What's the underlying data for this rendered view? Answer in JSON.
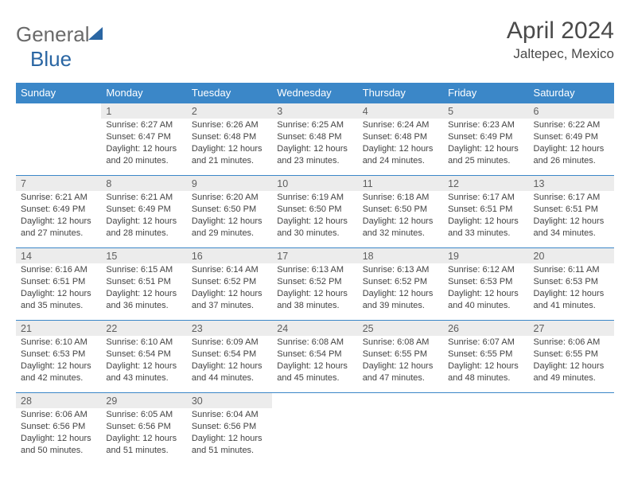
{
  "colors": {
    "header_bg": "#3b87c8",
    "header_text": "#ffffff",
    "daynum_bg": "#ececec",
    "daynum_text": "#5e5e5e",
    "cell_text": "#434343",
    "border": "#3b87c8",
    "logo_general": "#6a6a6a",
    "logo_blue": "#2a66a3",
    "title_text": "#4a4a4a",
    "location_text": "#4a4a4a",
    "sail_color": "#2a66a3"
  },
  "typography": {
    "month_title_fontsize": 30,
    "location_fontsize": 17,
    "logo_fontsize": 26,
    "weekday_fontsize": 13,
    "daynum_fontsize": 12.5,
    "cell_fontsize": 11
  },
  "logo": {
    "part1": "General",
    "part2": "Blue"
  },
  "title": "April 2024",
  "location": "Jaltepec, Mexico",
  "weekdays": [
    "Sunday",
    "Monday",
    "Tuesday",
    "Wednesday",
    "Thursday",
    "Friday",
    "Saturday"
  ],
  "weeks": [
    [
      {
        "n": "",
        "sunrise": "",
        "sunset": "",
        "daylight": ""
      },
      {
        "n": "1",
        "sunrise": "Sunrise: 6:27 AM",
        "sunset": "Sunset: 6:47 PM",
        "daylight": "Daylight: 12 hours and 20 minutes."
      },
      {
        "n": "2",
        "sunrise": "Sunrise: 6:26 AM",
        "sunset": "Sunset: 6:48 PM",
        "daylight": "Daylight: 12 hours and 21 minutes."
      },
      {
        "n": "3",
        "sunrise": "Sunrise: 6:25 AM",
        "sunset": "Sunset: 6:48 PM",
        "daylight": "Daylight: 12 hours and 23 minutes."
      },
      {
        "n": "4",
        "sunrise": "Sunrise: 6:24 AM",
        "sunset": "Sunset: 6:48 PM",
        "daylight": "Daylight: 12 hours and 24 minutes."
      },
      {
        "n": "5",
        "sunrise": "Sunrise: 6:23 AM",
        "sunset": "Sunset: 6:49 PM",
        "daylight": "Daylight: 12 hours and 25 minutes."
      },
      {
        "n": "6",
        "sunrise": "Sunrise: 6:22 AM",
        "sunset": "Sunset: 6:49 PM",
        "daylight": "Daylight: 12 hours and 26 minutes."
      }
    ],
    [
      {
        "n": "7",
        "sunrise": "Sunrise: 6:21 AM",
        "sunset": "Sunset: 6:49 PM",
        "daylight": "Daylight: 12 hours and 27 minutes."
      },
      {
        "n": "8",
        "sunrise": "Sunrise: 6:21 AM",
        "sunset": "Sunset: 6:49 PM",
        "daylight": "Daylight: 12 hours and 28 minutes."
      },
      {
        "n": "9",
        "sunrise": "Sunrise: 6:20 AM",
        "sunset": "Sunset: 6:50 PM",
        "daylight": "Daylight: 12 hours and 29 minutes."
      },
      {
        "n": "10",
        "sunrise": "Sunrise: 6:19 AM",
        "sunset": "Sunset: 6:50 PM",
        "daylight": "Daylight: 12 hours and 30 minutes."
      },
      {
        "n": "11",
        "sunrise": "Sunrise: 6:18 AM",
        "sunset": "Sunset: 6:50 PM",
        "daylight": "Daylight: 12 hours and 32 minutes."
      },
      {
        "n": "12",
        "sunrise": "Sunrise: 6:17 AM",
        "sunset": "Sunset: 6:51 PM",
        "daylight": "Daylight: 12 hours and 33 minutes."
      },
      {
        "n": "13",
        "sunrise": "Sunrise: 6:17 AM",
        "sunset": "Sunset: 6:51 PM",
        "daylight": "Daylight: 12 hours and 34 minutes."
      }
    ],
    [
      {
        "n": "14",
        "sunrise": "Sunrise: 6:16 AM",
        "sunset": "Sunset: 6:51 PM",
        "daylight": "Daylight: 12 hours and 35 minutes."
      },
      {
        "n": "15",
        "sunrise": "Sunrise: 6:15 AM",
        "sunset": "Sunset: 6:51 PM",
        "daylight": "Daylight: 12 hours and 36 minutes."
      },
      {
        "n": "16",
        "sunrise": "Sunrise: 6:14 AM",
        "sunset": "Sunset: 6:52 PM",
        "daylight": "Daylight: 12 hours and 37 minutes."
      },
      {
        "n": "17",
        "sunrise": "Sunrise: 6:13 AM",
        "sunset": "Sunset: 6:52 PM",
        "daylight": "Daylight: 12 hours and 38 minutes."
      },
      {
        "n": "18",
        "sunrise": "Sunrise: 6:13 AM",
        "sunset": "Sunset: 6:52 PM",
        "daylight": "Daylight: 12 hours and 39 minutes."
      },
      {
        "n": "19",
        "sunrise": "Sunrise: 6:12 AM",
        "sunset": "Sunset: 6:53 PM",
        "daylight": "Daylight: 12 hours and 40 minutes."
      },
      {
        "n": "20",
        "sunrise": "Sunrise: 6:11 AM",
        "sunset": "Sunset: 6:53 PM",
        "daylight": "Daylight: 12 hours and 41 minutes."
      }
    ],
    [
      {
        "n": "21",
        "sunrise": "Sunrise: 6:10 AM",
        "sunset": "Sunset: 6:53 PM",
        "daylight": "Daylight: 12 hours and 42 minutes."
      },
      {
        "n": "22",
        "sunrise": "Sunrise: 6:10 AM",
        "sunset": "Sunset: 6:54 PM",
        "daylight": "Daylight: 12 hours and 43 minutes."
      },
      {
        "n": "23",
        "sunrise": "Sunrise: 6:09 AM",
        "sunset": "Sunset: 6:54 PM",
        "daylight": "Daylight: 12 hours and 44 minutes."
      },
      {
        "n": "24",
        "sunrise": "Sunrise: 6:08 AM",
        "sunset": "Sunset: 6:54 PM",
        "daylight": "Daylight: 12 hours and 45 minutes."
      },
      {
        "n": "25",
        "sunrise": "Sunrise: 6:08 AM",
        "sunset": "Sunset: 6:55 PM",
        "daylight": "Daylight: 12 hours and 47 minutes."
      },
      {
        "n": "26",
        "sunrise": "Sunrise: 6:07 AM",
        "sunset": "Sunset: 6:55 PM",
        "daylight": "Daylight: 12 hours and 48 minutes."
      },
      {
        "n": "27",
        "sunrise": "Sunrise: 6:06 AM",
        "sunset": "Sunset: 6:55 PM",
        "daylight": "Daylight: 12 hours and 49 minutes."
      }
    ],
    [
      {
        "n": "28",
        "sunrise": "Sunrise: 6:06 AM",
        "sunset": "Sunset: 6:56 PM",
        "daylight": "Daylight: 12 hours and 50 minutes."
      },
      {
        "n": "29",
        "sunrise": "Sunrise: 6:05 AM",
        "sunset": "Sunset: 6:56 PM",
        "daylight": "Daylight: 12 hours and 51 minutes."
      },
      {
        "n": "30",
        "sunrise": "Sunrise: 6:04 AM",
        "sunset": "Sunset: 6:56 PM",
        "daylight": "Daylight: 12 hours and 51 minutes."
      },
      {
        "n": "",
        "sunrise": "",
        "sunset": "",
        "daylight": ""
      },
      {
        "n": "",
        "sunrise": "",
        "sunset": "",
        "daylight": ""
      },
      {
        "n": "",
        "sunrise": "",
        "sunset": "",
        "daylight": ""
      },
      {
        "n": "",
        "sunrise": "",
        "sunset": "",
        "daylight": ""
      }
    ]
  ]
}
